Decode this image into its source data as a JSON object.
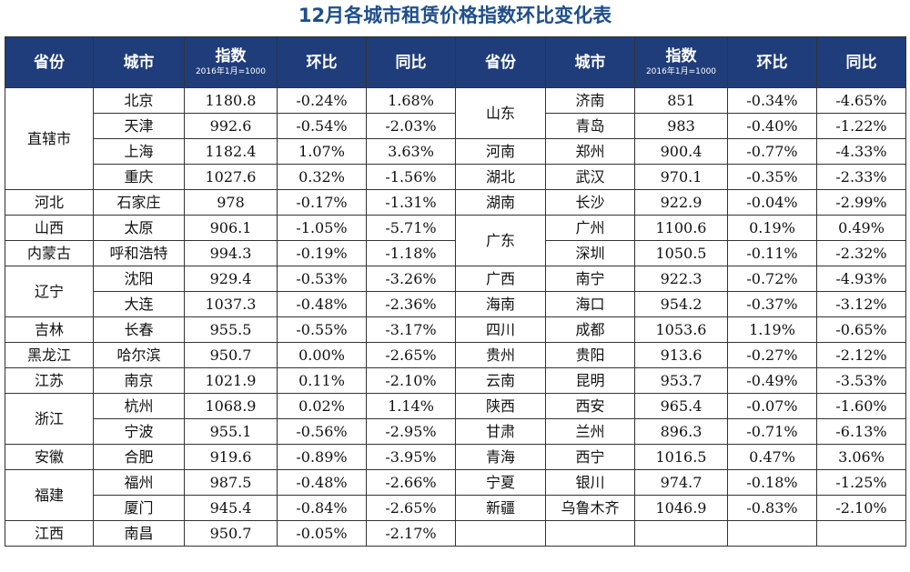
{
  "title": "12月各城市租赁价格指数环比变化表",
  "headers": {
    "province": "省份",
    "city": "城市",
    "index": "指数",
    "index_base": "2016年1月=1000",
    "mom": "环比",
    "yoy": "同比"
  },
  "left_rows": [
    {
      "province": "直辖市",
      "city": "北京",
      "index": "1180.8",
      "mom": "-0.24%",
      "yoy": "1.68%"
    },
    {
      "province": "",
      "city": "天津",
      "index": "992.6",
      "mom": "-0.54%",
      "yoy": "-2.03%"
    },
    {
      "province": "",
      "city": "上海",
      "index": "1182.4",
      "mom": "1.07%",
      "yoy": "3.63%"
    },
    {
      "province": "",
      "city": "重庆",
      "index": "1027.6",
      "mom": "0.32%",
      "yoy": "-1.56%"
    },
    {
      "province": "河北",
      "city": "石家庄",
      "index": "978",
      "mom": "-0.17%",
      "yoy": "-1.31%"
    },
    {
      "province": "山西",
      "city": "太原",
      "index": "906.1",
      "mom": "-1.05%",
      "yoy": "-5.71%"
    },
    {
      "province": "内蒙古",
      "city": "呼和浩特",
      "index": "994.3",
      "mom": "-0.19%",
      "yoy": "-1.18%"
    },
    {
      "province": "辽宁",
      "city": "沈阳",
      "index": "929.4",
      "mom": "-0.53%",
      "yoy": "-3.26%"
    },
    {
      "province": "",
      "city": "大连",
      "index": "1037.3",
      "mom": "-0.48%",
      "yoy": "-2.36%"
    },
    {
      "province": "吉林",
      "city": "长春",
      "index": "955.5",
      "mom": "-0.55%",
      "yoy": "-3.17%"
    },
    {
      "province": "黑龙江",
      "city": "哈尔滨",
      "index": "950.7",
      "mom": "0.00%",
      "yoy": "-2.65%"
    },
    {
      "province": "江苏",
      "city": "南京",
      "index": "1021.9",
      "mom": "0.11%",
      "yoy": "-2.10%"
    },
    {
      "province": "浙江",
      "city": "杭州",
      "index": "1068.9",
      "mom": "0.02%",
      "yoy": "1.14%"
    },
    {
      "province": "",
      "city": "宁波",
      "index": "955.1",
      "mom": "-0.56%",
      "yoy": "-2.95%"
    },
    {
      "province": "安徽",
      "city": "合肥",
      "index": "919.6",
      "mom": "-0.89%",
      "yoy": "-3.95%"
    },
    {
      "province": "福建",
      "city": "福州",
      "index": "987.5",
      "mom": "-0.48%",
      "yoy": "-2.66%"
    },
    {
      "province": "",
      "city": "厦门",
      "index": "945.4",
      "mom": "-0.84%",
      "yoy": "-2.65%"
    },
    {
      "province": "江西",
      "city": "南昌",
      "index": "950.7",
      "mom": "-0.05%",
      "yoy": "-2.17%"
    }
  ],
  "right_rows": [
    {
      "province": "山东",
      "city": "济南",
      "index": "851",
      "mom": "-0.34%",
      "yoy": "-4.65%"
    },
    {
      "province": "",
      "city": "青岛",
      "index": "983",
      "mom": "-0.40%",
      "yoy": "-1.22%"
    },
    {
      "province": "河南",
      "city": "郑州",
      "index": "900.4",
      "mom": "-0.77%",
      "yoy": "-4.33%"
    },
    {
      "province": "湖北",
      "city": "武汉",
      "index": "970.1",
      "mom": "-0.35%",
      "yoy": "-2.33%"
    },
    {
      "province": "湖南",
      "city": "长沙",
      "index": "922.9",
      "mom": "-0.04%",
      "yoy": "-2.99%"
    },
    {
      "province": "广东",
      "city": "广州",
      "index": "1100.6",
      "mom": "0.19%",
      "yoy": "0.49%"
    },
    {
      "province": "",
      "city": "深圳",
      "index": "1050.5",
      "mom": "-0.11%",
      "yoy": "-2.32%"
    },
    {
      "province": "广西",
      "city": "南宁",
      "index": "922.3",
      "mom": "-0.72%",
      "yoy": "-4.93%"
    },
    {
      "province": "海南",
      "city": "海口",
      "index": "954.2",
      "mom": "-0.37%",
      "yoy": "-3.12%"
    },
    {
      "province": "四川",
      "city": "成都",
      "index": "1053.6",
      "mom": "1.19%",
      "yoy": "-0.65%"
    },
    {
      "province": "贵州",
      "city": "贵阳",
      "index": "913.6",
      "mom": "-0.27%",
      "yoy": "-2.12%"
    },
    {
      "province": "云南",
      "city": "昆明",
      "index": "953.7",
      "mom": "-0.49%",
      "yoy": "-3.53%"
    },
    {
      "province": "陕西",
      "city": "西安",
      "index": "965.4",
      "mom": "-0.07%",
      "yoy": "-1.60%"
    },
    {
      "province": "甘肃",
      "city": "兰州",
      "index": "896.3",
      "mom": "-0.71%",
      "yoy": "-6.13%"
    },
    {
      "province": "青海",
      "city": "西宁",
      "index": "1016.5",
      "mom": "0.47%",
      "yoy": "3.06%"
    },
    {
      "province": "宁夏",
      "city": "银川",
      "index": "974.7",
      "mom": "-0.18%",
      "yoy": "-1.25%"
    },
    {
      "province": "新疆",
      "city": "乌鲁木齐",
      "index": "1046.9",
      "mom": "-0.83%",
      "yoy": "-2.10%"
    },
    {
      "province": "",
      "city": "",
      "index": "",
      "mom": "",
      "yoy": ""
    }
  ],
  "colors": {
    "title": "#1f4e8c",
    "header_bg": "#1f3d7a",
    "header_text": "#ffffff",
    "border": "#333333"
  }
}
